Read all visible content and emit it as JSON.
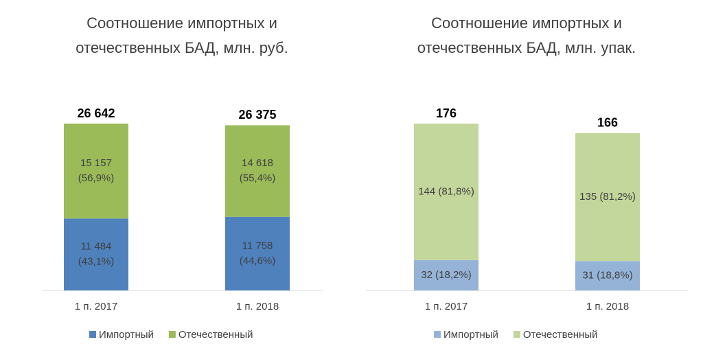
{
  "chart_data": [
    {
      "type": "stacked-bar",
      "title": [
        "Соотношение импортных и",
        "отечественных БАД, млн. руб."
      ],
      "categories": [
        "1 п. 2017",
        "1 п. 2018"
      ],
      "series": [
        {
          "name": "Импортный",
          "color": "#4f81bd",
          "values": [
            11484,
            11758
          ],
          "value_labels": [
            [
              "11 484",
              "(43,1%)"
            ],
            [
              "11 758",
              "(44,6%)"
            ]
          ]
        },
        {
          "name": "Отечественный",
          "color": "#9bbb59",
          "values": [
            15157,
            14618
          ],
          "value_labels": [
            [
              "15 157",
              "(56,9%)"
            ],
            [
              "14 618",
              "(55,4%)"
            ]
          ]
        }
      ],
      "totals": [
        26642,
        26375
      ],
      "total_labels": [
        "26 642",
        "26 375"
      ]
    },
    {
      "type": "stacked-bar",
      "title": [
        "Соотношение импортных и",
        "отечественных БАД, млн. упак."
      ],
      "categories": [
        "1 п. 2017",
        "1 п. 2018"
      ],
      "series": [
        {
          "name": "Импортный",
          "color": "#95b3d7",
          "values": [
            32,
            31
          ],
          "value_labels": [
            "32 (18,2%)",
            "31 (18,8%)"
          ]
        },
        {
          "name": "Отечественный",
          "color": "#c3d69b",
          "values": [
            144,
            135
          ],
          "value_labels": [
            "144 (81,8%)",
            "135 (81,2%)"
          ]
        }
      ],
      "totals": [
        176,
        166
      ]
    }
  ]
}
